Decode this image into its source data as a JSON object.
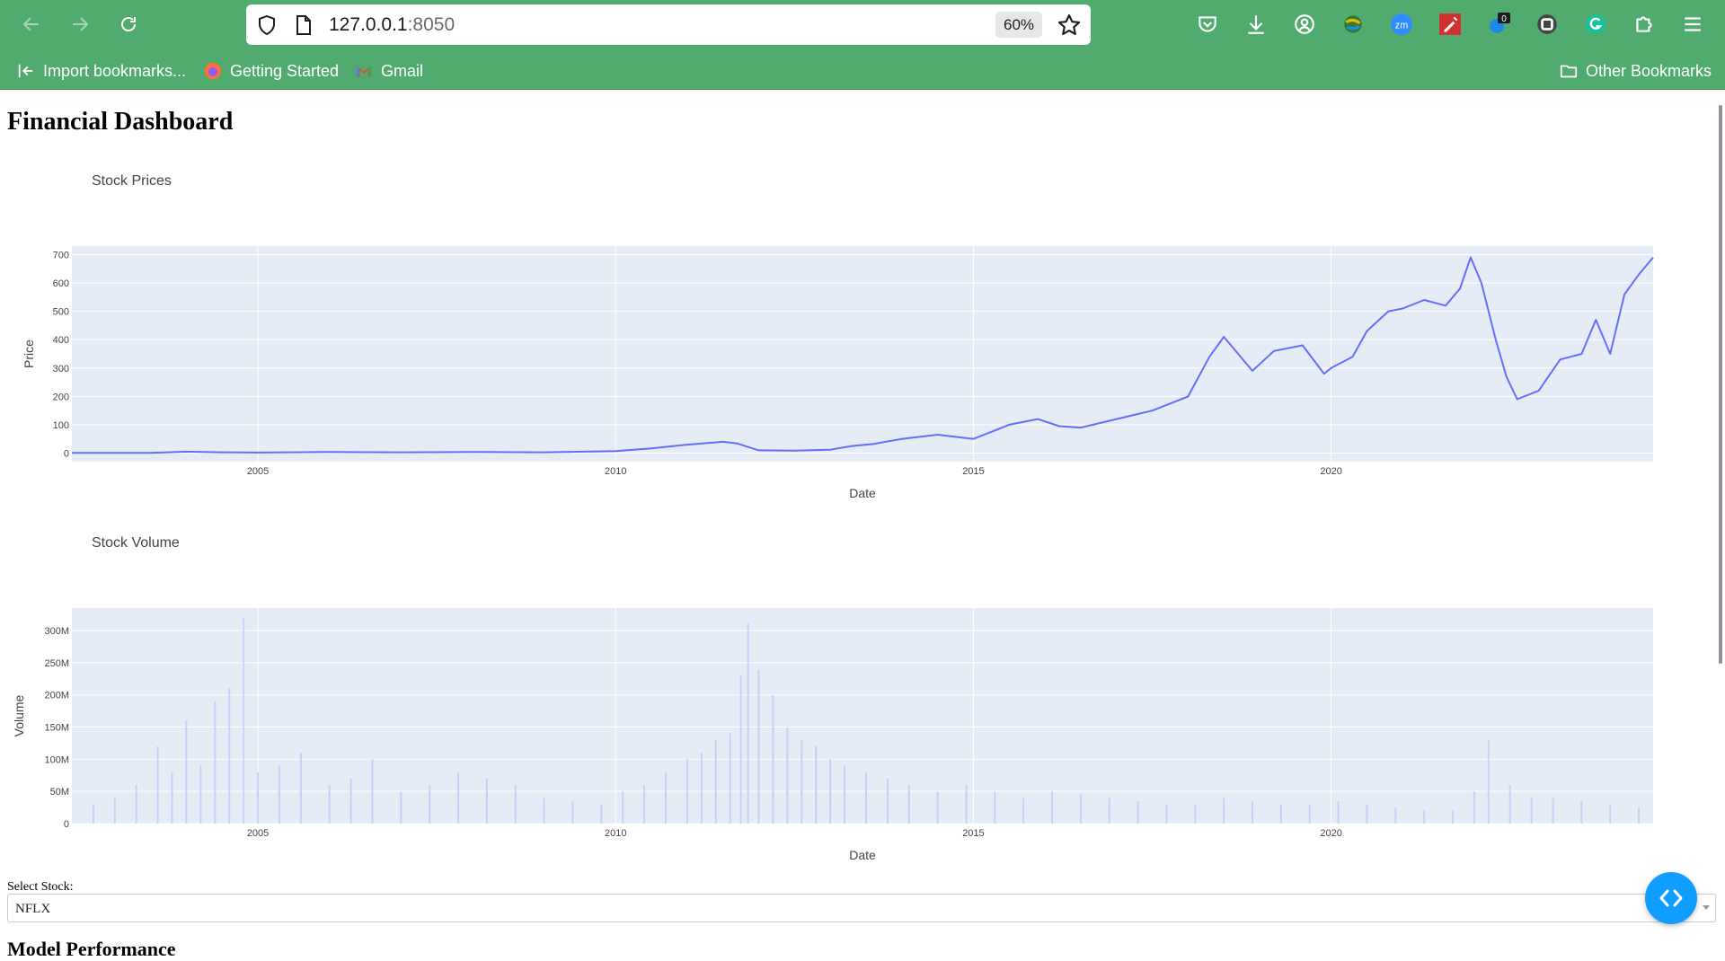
{
  "browser": {
    "url_host": "127.0.0.1",
    "url_port": ":8050",
    "zoom": "60%",
    "bookmarks": [
      "Import bookmarks...",
      "Getting Started",
      "Gmail"
    ],
    "other_bookmarks": "Other Bookmarks",
    "extension_badge": "0",
    "zoom_ext_label": "zm",
    "toolbar_icons": [
      "back-icon",
      "forward-icon",
      "reload-icon",
      "shield-icon",
      "page-icon",
      "star-icon",
      "pocket-icon",
      "download-icon",
      "account-icon",
      "globe-extension-icon",
      "zoom-extension-icon",
      "pen-extension-icon",
      "badge-extension-icon",
      "square-extension-icon",
      "grammarly-icon",
      "extensions-puzzle-icon",
      "menu-icon"
    ]
  },
  "page": {
    "title": "Financial Dashboard",
    "select_label": "Select Stock:",
    "selected_stock": "NFLX",
    "next_heading": "Model Performance"
  },
  "colors": {
    "chrome": "#52ab6e",
    "plot_bg": "#e5ecf6",
    "price_line": "#636efa",
    "volume_bar": "#c9d0f8",
    "fab": "#119dff"
  },
  "chart_data": [
    {
      "type": "line",
      "title": "Stock Prices",
      "xlabel": "Date",
      "ylabel": "Price",
      "xlim": [
        2002.4,
        2024.5
      ],
      "ylim": [
        -30,
        730
      ],
      "x_ticks": [
        2005,
        2010,
        2015,
        2020
      ],
      "x_tick_labels": [
        "2005",
        "2010",
        "2015",
        "2020"
      ],
      "y_ticks": [
        0,
        100,
        200,
        300,
        400,
        500,
        600,
        700
      ],
      "y_tick_labels": [
        "0",
        "100",
        "200",
        "300",
        "400",
        "500",
        "600",
        "700"
      ],
      "grid": true,
      "series": [
        {
          "x": [
            2002.4,
            2003.5,
            2004.0,
            2004.5,
            2005.0,
            2006.0,
            2007.0,
            2008.0,
            2009.0,
            2010.0,
            2010.5,
            2011.0,
            2011.5,
            2011.7,
            2012.0,
            2012.5,
            2013.0,
            2013.3,
            2013.6,
            2014.0,
            2014.5,
            2015.0,
            2015.3,
            2015.5,
            2015.9,
            2016.2,
            2016.5,
            2017.0,
            2017.5,
            2018.0,
            2018.3,
            2018.5,
            2018.9,
            2019.2,
            2019.6,
            2019.9,
            2020.0,
            2020.3,
            2020.5,
            2020.8,
            2021.0,
            2021.3,
            2021.6,
            2021.8,
            2021.95,
            2022.1,
            2022.3,
            2022.45,
            2022.6,
            2022.9,
            2023.2,
            2023.5,
            2023.7,
            2023.9,
            2024.1,
            2024.3,
            2024.5
          ],
          "y": [
            1,
            1,
            5,
            3,
            2,
            4,
            3,
            4,
            3,
            7,
            17,
            30,
            40,
            34,
            10,
            9,
            12,
            25,
            32,
            50,
            65,
            50,
            80,
            100,
            120,
            95,
            90,
            120,
            150,
            200,
            340,
            410,
            290,
            360,
            380,
            280,
            300,
            340,
            430,
            500,
            510,
            540,
            520,
            580,
            690,
            600,
            400,
            270,
            190,
            220,
            330,
            350,
            470,
            350,
            560,
            630,
            690
          ]
        }
      ]
    },
    {
      "type": "bar",
      "title": "Stock Volume",
      "xlabel": "Date",
      "ylabel": "Volume",
      "xlim": [
        2002.4,
        2024.5
      ],
      "ylim": [
        0,
        335000000
      ],
      "x_ticks": [
        2005,
        2010,
        2015,
        2020
      ],
      "x_tick_labels": [
        "2005",
        "2010",
        "2015",
        "2020"
      ],
      "y_ticks": [
        0,
        50000000,
        100000000,
        150000000,
        200000000,
        250000000,
        300000000
      ],
      "y_tick_labels": [
        "0",
        "50M",
        "100M",
        "150M",
        "200M",
        "250M",
        "300M"
      ],
      "grid": true,
      "series": [
        {
          "x": [
            2002.7,
            2003.0,
            2003.3,
            2003.6,
            2003.8,
            2004.0,
            2004.2,
            2004.4,
            2004.6,
            2004.8,
            2005.0,
            2005.3,
            2005.6,
            2006.0,
            2006.3,
            2006.6,
            2007.0,
            2007.4,
            2007.8,
            2008.2,
            2008.6,
            2009.0,
            2009.4,
            2009.8,
            2010.1,
            2010.4,
            2010.7,
            2011.0,
            2011.2,
            2011.4,
            2011.6,
            2011.75,
            2011.85,
            2012.0,
            2012.2,
            2012.4,
            2012.6,
            2012.8,
            2013.0,
            2013.2,
            2013.5,
            2013.8,
            2014.1,
            2014.5,
            2014.9,
            2015.3,
            2015.7,
            2016.1,
            2016.5,
            2016.9,
            2017.3,
            2017.7,
            2018.1,
            2018.5,
            2018.9,
            2019.3,
            2019.7,
            2020.1,
            2020.5,
            2020.9,
            2021.3,
            2021.7,
            2022.0,
            2022.2,
            2022.5,
            2022.8,
            2023.1,
            2023.5,
            2023.9,
            2024.3
          ],
          "y": [
            30000000,
            40000000,
            60000000,
            120000000,
            80000000,
            160000000,
            90000000,
            190000000,
            210000000,
            320000000,
            80000000,
            90000000,
            110000000,
            60000000,
            70000000,
            100000000,
            50000000,
            60000000,
            80000000,
            70000000,
            60000000,
            40000000,
            35000000,
            30000000,
            50000000,
            60000000,
            80000000,
            100000000,
            110000000,
            130000000,
            140000000,
            230000000,
            310000000,
            240000000,
            200000000,
            150000000,
            130000000,
            120000000,
            100000000,
            90000000,
            80000000,
            70000000,
            60000000,
            50000000,
            60000000,
            50000000,
            40000000,
            50000000,
            45000000,
            40000000,
            35000000,
            30000000,
            30000000,
            40000000,
            35000000,
            30000000,
            30000000,
            35000000,
            30000000,
            25000000,
            20000000,
            20000000,
            50000000,
            130000000,
            60000000,
            40000000,
            40000000,
            35000000,
            30000000,
            25000000
          ]
        }
      ]
    }
  ]
}
